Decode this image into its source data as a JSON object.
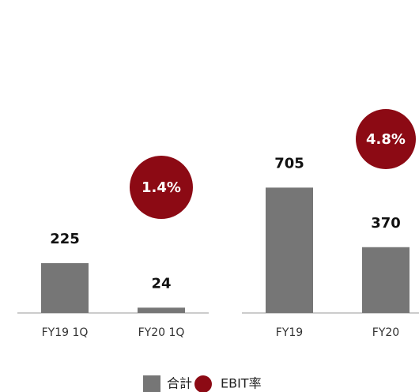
{
  "chart_data": [
    {
      "type": "bar",
      "categories": [
        "FY19 1Q",
        "FY20 1Q"
      ],
      "series": [
        {
          "name": "合計",
          "color": "#767676",
          "values": [
            225,
            24
          ]
        },
        {
          "name": "EBIT率",
          "color": "#8c0a14",
          "values": [
            null,
            1.4
          ],
          "value_labels": [
            null,
            "1.4%"
          ]
        }
      ]
    },
    {
      "type": "bar",
      "categories": [
        "FY19",
        "FY20"
      ],
      "series": [
        {
          "name": "合計",
          "color": "#767676",
          "values": [
            705,
            370
          ]
        },
        {
          "name": "EBIT率",
          "color": "#8c0a14",
          "values": [
            null,
            4.8
          ],
          "value_labels": [
            null,
            "4.8%"
          ]
        }
      ]
    }
  ]
}
